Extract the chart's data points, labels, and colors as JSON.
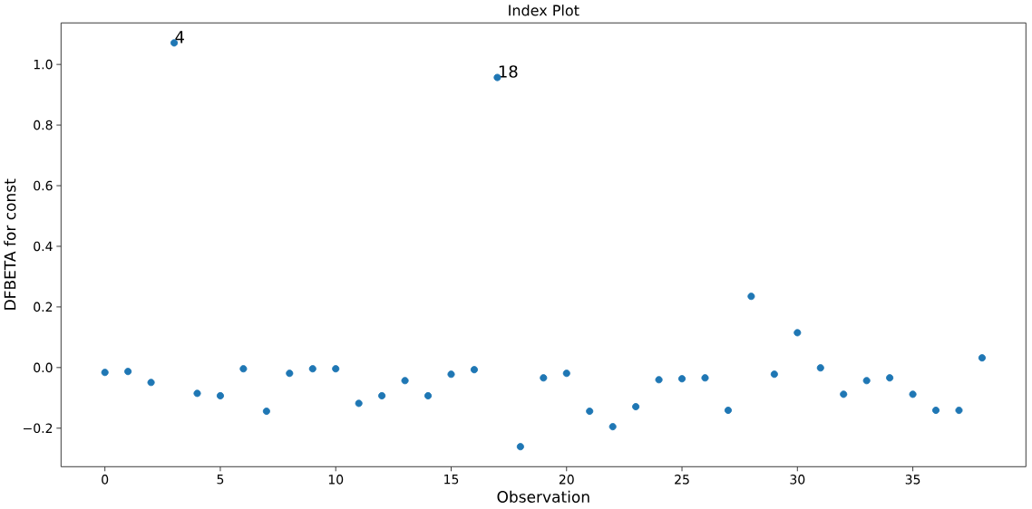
{
  "chart_data": {
    "type": "scatter",
    "title": "Index Plot",
    "xlabel": "Observation",
    "ylabel": "DFBETA for const",
    "x": [
      0,
      1,
      2,
      3,
      4,
      5,
      6,
      7,
      8,
      9,
      10,
      11,
      12,
      13,
      14,
      15,
      16,
      17,
      18,
      19,
      20,
      21,
      22,
      23,
      24,
      25,
      26,
      27,
      28,
      29,
      30,
      31,
      32,
      33,
      34,
      35,
      36,
      37,
      38
    ],
    "values": [
      -0.016,
      -0.013,
      -0.049,
      1.071,
      -0.085,
      -0.093,
      -0.004,
      -0.144,
      -0.019,
      -0.004,
      -0.004,
      -0.118,
      -0.093,
      -0.043,
      -0.093,
      -0.022,
      -0.007,
      0.957,
      -0.261,
      -0.034,
      -0.019,
      -0.144,
      -0.195,
      -0.129,
      -0.04,
      -0.037,
      -0.034,
      -0.141,
      0.235,
      -0.022,
      0.115,
      -0.001,
      -0.088,
      -0.043,
      -0.034,
      -0.088,
      -0.141,
      -0.141,
      0.032
    ],
    "color": "#1f77b4",
    "marker": "circle",
    "xlim": [
      -1.9,
      39.9
    ],
    "xticks": [
      0,
      5,
      10,
      15,
      20,
      25,
      30,
      35
    ],
    "ylim": [
      -0.327,
      1.137
    ],
    "yticks": [
      {
        "value": -0.2,
        "label": "−0.2"
      },
      {
        "value": 0.0,
        "label": "0.0"
      },
      {
        "value": 0.2,
        "label": "0.2"
      },
      {
        "value": 0.4,
        "label": "0.4"
      },
      {
        "value": 0.6,
        "label": "0.6"
      },
      {
        "value": 0.8,
        "label": "0.8"
      },
      {
        "value": 1.0,
        "label": "1.0"
      }
    ],
    "annotations": [
      {
        "text": "4",
        "x": 3,
        "y": 1.071
      },
      {
        "text": "18",
        "x": 17,
        "y": 0.957
      }
    ]
  }
}
